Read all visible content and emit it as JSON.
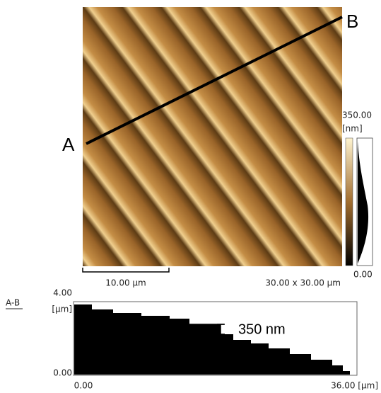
{
  "image": {
    "label_a": "A",
    "label_b": "B",
    "scale_bar": "10.00 µm",
    "size": "30.00 x 30.00 µm"
  },
  "colorbar": {
    "max": "350.00",
    "unit": "[nm]",
    "min": "0.00"
  },
  "profile": {
    "title": "A-B",
    "y_max": "4.00",
    "y_unit": "[µm]",
    "y_min": "0.00",
    "x_min": "0.00",
    "x_max": "36.00 [µm]",
    "annotation": "350 nm"
  }
}
